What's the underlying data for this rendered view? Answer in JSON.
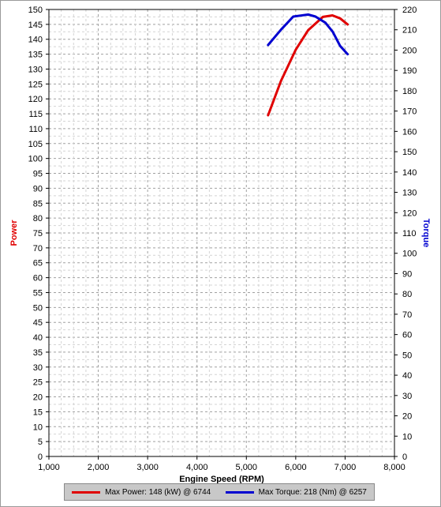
{
  "chart_data": {
    "type": "line",
    "xlabel": "Engine Speed (RPM)",
    "ylabel_left": "Power",
    "ylabel_right": "Torque",
    "xlim": [
      1000,
      8000
    ],
    "xticks": [
      1000,
      2000,
      3000,
      4000,
      5000,
      6000,
      7000,
      8000
    ],
    "xtick_labels": [
      "1,000",
      "2,000",
      "3,000",
      "4,000",
      "5,000",
      "6,000",
      "7,000",
      "8,000"
    ],
    "ylim_left": [
      0,
      150
    ],
    "ylim_right": [
      0,
      220
    ],
    "grid": true,
    "legend_position": "bottom",
    "series": [
      {
        "name": "Max Power: 148 (kW) @ 6744",
        "axis": "left",
        "color": "#e00000",
        "points": [
          [
            5440,
            114.5
          ],
          [
            5700,
            126
          ],
          [
            6000,
            136.5
          ],
          [
            6250,
            143
          ],
          [
            6550,
            147.5
          ],
          [
            6744,
            148
          ],
          [
            6900,
            147
          ],
          [
            7050,
            145
          ]
        ]
      },
      {
        "name": "Max Torque: 218 (Nm) @ 6257",
        "axis": "right",
        "color": "#0000d0",
        "points": [
          [
            5440,
            202.5
          ],
          [
            5700,
            210
          ],
          [
            5950,
            216.5
          ],
          [
            6100,
            217
          ],
          [
            6257,
            217.5
          ],
          [
            6400,
            216.5
          ],
          [
            6600,
            213.5
          ],
          [
            6750,
            209
          ],
          [
            6900,
            202
          ],
          [
            7050,
            198
          ]
        ]
      }
    ]
  }
}
